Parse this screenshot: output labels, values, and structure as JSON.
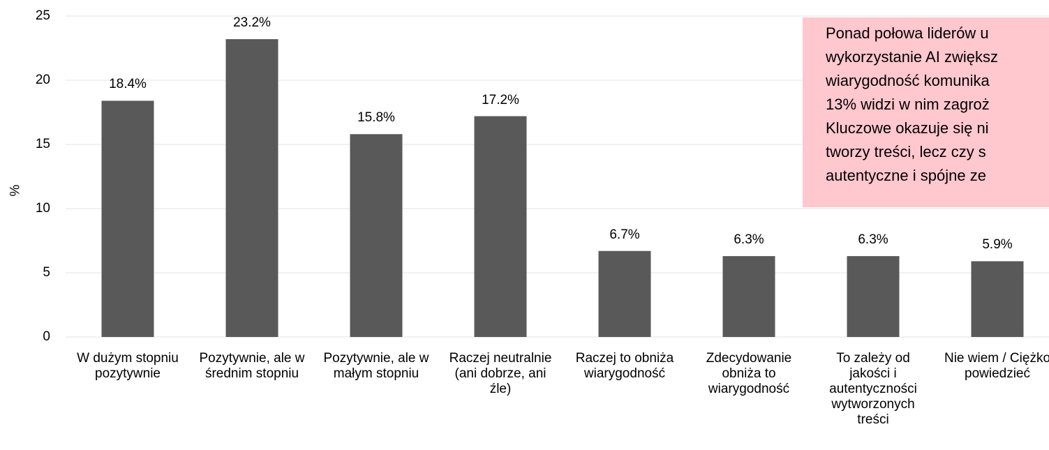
{
  "chart_data": {
    "type": "bar",
    "y_label": "%",
    "categories": [
      "W dużym stopniu pozytywnie",
      "Pozytywnie, ale w średnim stopniu",
      "Pozytywnie, ale w małym stopniu",
      "Raczej neutralnie (ani dobrze, ani źle)",
      "Raczej to obniża wiarygodność",
      "Zdecydowanie obniża to wiarygodność",
      "To zależy od jakości i autentyczności wytworzonych treści",
      "Nie wiem / Ciężko powiedzieć"
    ],
    "values": [
      18.4,
      23.2,
      15.8,
      17.2,
      6.7,
      6.3,
      6.3,
      5.9
    ],
    "value_labels": [
      "18.4%",
      "23.2%",
      "15.8%",
      "17.2%",
      "6.7%",
      "6.3%",
      "6.3%",
      "5.9%"
    ],
    "color": "#595959",
    "ylim": [
      0,
      25
    ],
    "yticks": [
      0,
      5,
      10,
      15,
      20,
      25
    ],
    "grid": true,
    "annotation": [
      "Ponad połowa liderów u",
      "wykorzystanie AI zwiększ",
      "wiarygodność komunika",
      "13% widzi w nim zagroż",
      "Kluczowe okazuje się ni",
      "tworzy treści, lecz czy s",
      "autentyczne i spójne ze"
    ],
    "annotation_color": "#ffc7ce"
  }
}
